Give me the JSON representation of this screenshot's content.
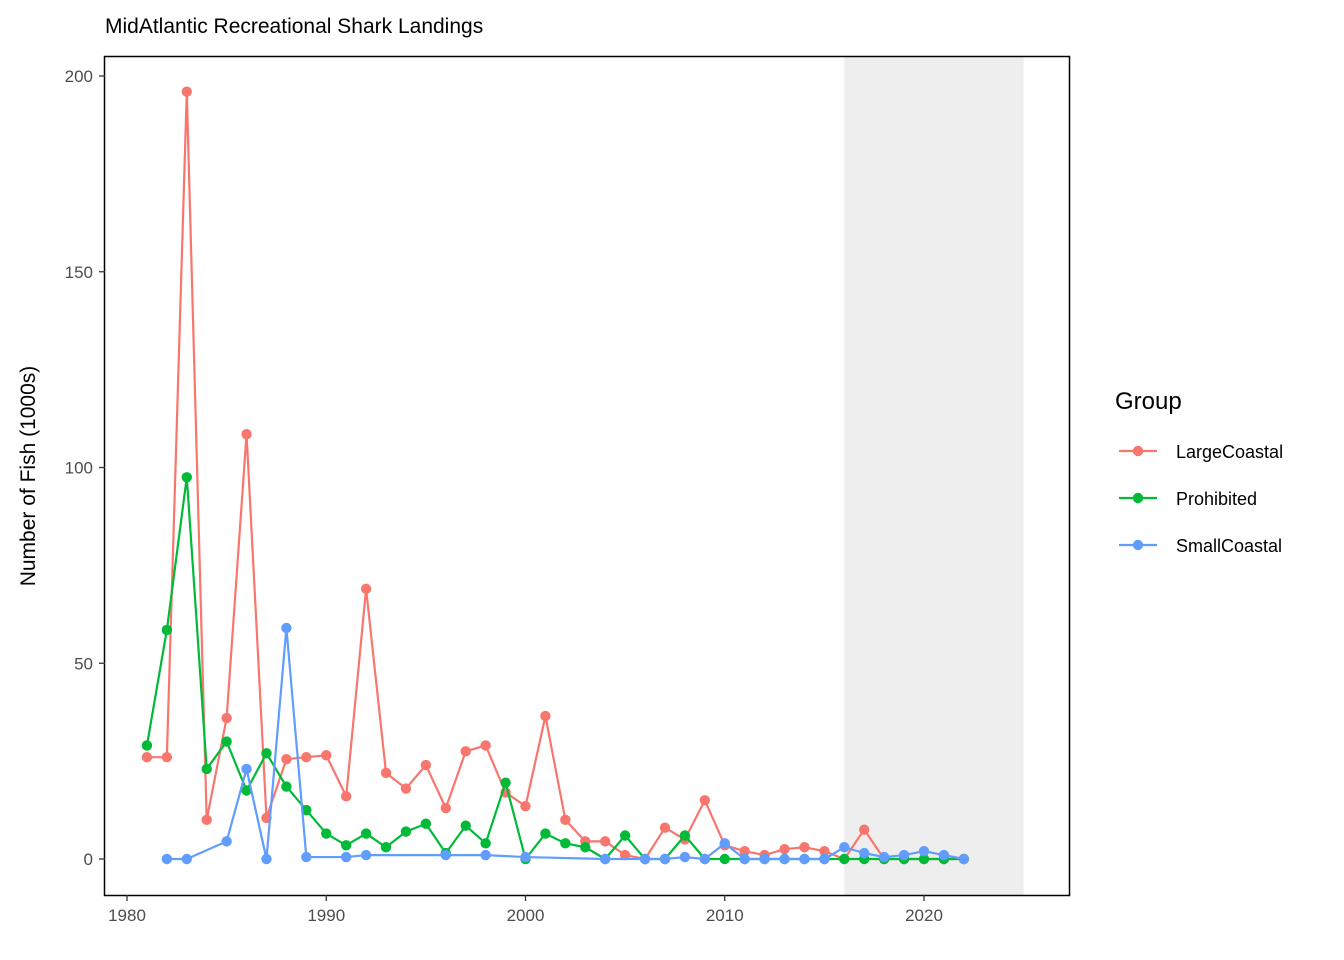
{
  "chart_data": {
    "type": "line",
    "title": "MidAtlantic Recreational Shark Landings",
    "xlabel": "",
    "ylabel": "Number of Fish (1000s)",
    "xlim": [
      1980,
      2025
    ],
    "ylim": [
      0,
      200
    ],
    "x_ticks": [
      1980,
      1990,
      2000,
      2010,
      2020
    ],
    "y_ticks": [
      0,
      50,
      100,
      150,
      200
    ],
    "grid": false,
    "shaded_region": {
      "x_start": 2016,
      "x_end": 2025,
      "color": "#eeeeee"
    },
    "legend": {
      "title": "Group",
      "position": "right"
    },
    "series": [
      {
        "name": "LargeCoastal",
        "color": "#F8766D",
        "x": [
          1981,
          1982,
          1983,
          1984,
          1985,
          1986,
          1987,
          1988,
          1989,
          1990,
          1991,
          1992,
          1993,
          1994,
          1995,
          1996,
          1997,
          1998,
          1999,
          2000,
          2001,
          2002,
          2003,
          2004,
          2005,
          2006,
          2007,
          2008,
          2009,
          2010,
          2011,
          2012,
          2013,
          2014,
          2015,
          2016,
          2017,
          2018,
          2019,
          2020,
          2021,
          2022
        ],
        "y": [
          26,
          26,
          196,
          10,
          36,
          108.5,
          10.5,
          25.5,
          26,
          26.5,
          16,
          69,
          22,
          18,
          24,
          13,
          27.5,
          29,
          17,
          13.5,
          36.5,
          10,
          4.5,
          4.5,
          1,
          0,
          8,
          5,
          15,
          3.5,
          2,
          1,
          2.5,
          3,
          2,
          0,
          7.5,
          0,
          0,
          0,
          0,
          0
        ]
      },
      {
        "name": "Prohibited",
        "color": "#00BA38",
        "x": [
          1981,
          1982,
          1983,
          1984,
          1985,
          1986,
          1987,
          1988,
          1989,
          1990,
          1991,
          1992,
          1993,
          1994,
          1995,
          1996,
          1997,
          1998,
          1999,
          2000,
          2001,
          2002,
          2003,
          2004,
          2005,
          2006,
          2007,
          2008,
          2009,
          2010,
          2011,
          2012,
          2013,
          2014,
          2015,
          2016,
          2017,
          2018,
          2019,
          2020,
          2021,
          2022
        ],
        "y": [
          29,
          58.5,
          97.5,
          23,
          30,
          17.5,
          27,
          18.5,
          12.5,
          6.5,
          3.5,
          6.5,
          3,
          7,
          9,
          1.5,
          8.5,
          4,
          19.5,
          0,
          6.5,
          4,
          3,
          0,
          6,
          0,
          0,
          6,
          0,
          0,
          0,
          0,
          0,
          0,
          0,
          0,
          0,
          0,
          0,
          0,
          0,
          0
        ]
      },
      {
        "name": "SmallCoastal",
        "color": "#619CFF",
        "x": [
          1982,
          1983,
          1985,
          1986,
          1987,
          1988,
          1989,
          1991,
          1992,
          1996,
          1998,
          2000,
          2004,
          2006,
          2007,
          2008,
          2009,
          2010,
          2011,
          2012,
          2013,
          2014,
          2015,
          2016,
          2017,
          2018,
          2019,
          2020,
          2021,
          2022
        ],
        "y": [
          0,
          0,
          4.5,
          23,
          0,
          59,
          0.5,
          0.5,
          1,
          1,
          1,
          0.5,
          0,
          0,
          0,
          0.5,
          0,
          4,
          0,
          0,
          0,
          0,
          0,
          3,
          1.5,
          0.5,
          1,
          2,
          1,
          0
        ]
      }
    ]
  }
}
